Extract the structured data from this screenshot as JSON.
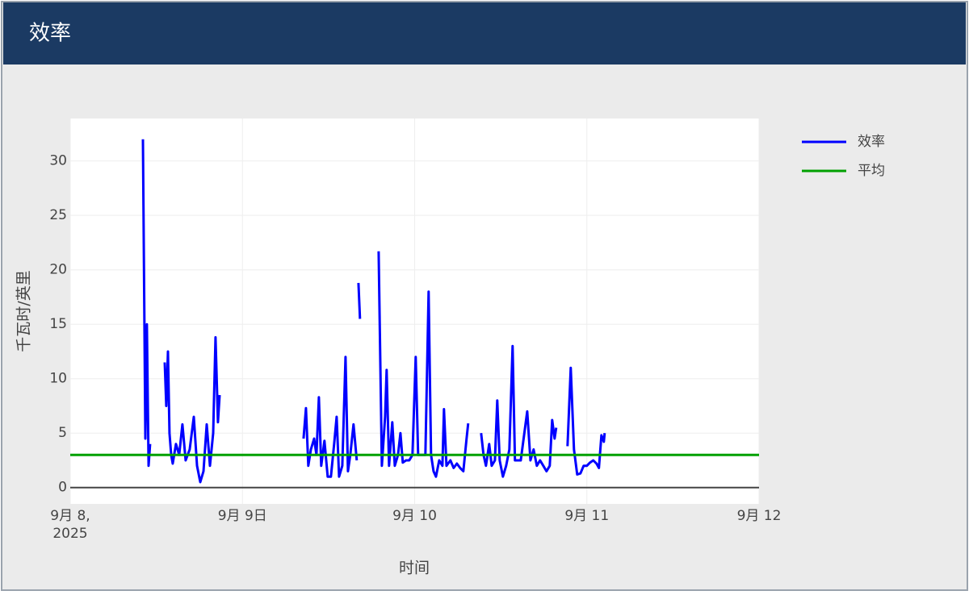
{
  "header": {
    "title": "效率"
  },
  "chart_data": {
    "type": "line",
    "xlabel": "时间",
    "ylabel": "千瓦时/英里",
    "xlim": [
      "2025-09-08T00:00",
      "2025-09-12T00:00"
    ],
    "xticks": [
      {
        "value": "2025-09-08T00:00",
        "label": "9月 8,\n2025"
      },
      {
        "value": "2025-09-09T00:00",
        "label": "9月 9日"
      },
      {
        "value": "2025-09-10T00:00",
        "label": "9月 10"
      },
      {
        "value": "2025-09-11T00:00",
        "label": "9月 11"
      },
      {
        "value": "2025-09-12T00:00",
        "label": "9月 12"
      }
    ],
    "ylim": [
      -1.5,
      33.9
    ],
    "yticks": [
      0,
      5,
      10,
      15,
      20,
      25,
      30
    ],
    "grid": true,
    "legend": "right",
    "series": [
      {
        "name": "效率",
        "color": "#0000ff",
        "x": [
          "2025-09-08T10:08",
          "2025-09-08T10:28",
          "2025-09-08T10:41",
          "2025-09-08T10:55",
          "2025-09-08T11:08",
          null,
          "2025-09-08T13:10",
          "2025-09-08T13:23",
          "2025-09-08T13:37",
          "2025-09-08T13:50",
          "2025-09-08T14:04",
          "2025-09-08T14:17",
          "2025-09-08T14:44",
          "2025-09-08T15:11",
          "2025-09-08T15:38",
          "2025-09-08T16:05",
          "2025-09-08T16:39",
          "2025-09-08T17:13",
          "2025-09-08T17:40",
          "2025-09-08T18:07",
          "2025-09-08T18:34",
          "2025-09-08T19:01",
          "2025-09-08T19:28",
          "2025-09-08T19:55",
          "2025-09-08T20:15",
          "2025-09-08T20:35",
          "2025-09-08T20:49",
          null,
          "2025-09-09T08:31",
          "2025-09-09T08:51",
          "2025-09-09T09:11",
          "2025-09-09T09:32",
          "2025-09-09T09:59",
          "2025-09-09T10:19",
          "2025-09-09T10:39",
          "2025-09-09T10:59",
          "2025-09-09T11:26",
          "2025-09-09T11:53",
          "2025-09-09T12:20",
          "2025-09-09T12:47",
          "2025-09-09T13:08",
          "2025-09-09T13:28",
          "2025-09-09T13:55",
          "2025-09-09T14:22",
          "2025-09-09T14:42",
          "2025-09-09T15:02",
          "2025-09-09T15:29",
          "2025-09-09T15:56",
          null,
          "2025-09-09T16:10",
          "2025-09-09T16:23",
          null,
          "2025-09-09T18:59",
          "2025-09-09T19:26",
          "2025-09-09T19:53",
          "2025-09-09T20:06",
          "2025-09-09T20:26",
          "2025-09-09T20:53",
          "2025-09-09T21:14",
          "2025-09-09T21:41",
          "2025-09-09T22:01",
          "2025-09-09T22:21",
          "2025-09-09T22:48",
          "2025-09-09T23:15",
          "2025-09-09T23:42",
          "2025-09-10T00:09",
          "2025-09-10T00:29",
          "2025-09-10T01:30",
          "2025-09-10T01:57",
          "2025-09-10T02:17",
          "2025-09-10T02:38",
          "2025-09-10T02:58",
          "2025-09-10T03:25",
          "2025-09-10T03:52",
          "2025-09-10T04:05",
          "2025-09-10T04:26",
          "2025-09-10T04:59",
          "2025-09-10T05:26",
          "2025-09-10T05:53",
          "2025-09-10T06:20",
          "2025-09-10T06:47",
          "2025-09-10T07:14",
          "2025-09-10T07:28",
          null,
          "2025-09-10T09:16",
          "2025-09-10T09:36",
          "2025-09-10T09:56",
          "2025-09-10T10:23",
          "2025-09-10T10:44",
          "2025-09-10T11:11",
          "2025-09-10T11:31",
          "2025-09-10T11:51",
          "2025-09-10T12:18",
          "2025-09-10T12:45",
          "2025-09-10T13:12",
          "2025-09-10T13:39",
          "2025-09-10T13:59",
          "2025-09-10T14:47",
          "2025-09-10T15:41",
          "2025-09-10T16:08",
          "2025-09-10T16:35",
          "2025-09-10T17:02",
          "2025-09-10T17:29",
          "2025-09-10T17:56",
          "2025-09-10T18:23",
          "2025-09-10T18:50",
          "2025-09-10T19:10",
          "2025-09-10T19:30",
          "2025-09-10T19:44",
          null,
          "2025-09-10T21:18",
          "2025-09-10T21:45",
          "2025-09-10T22:12",
          "2025-09-10T22:39",
          "2025-09-10T23:06",
          "2025-09-10T23:33",
          "2025-09-11T00:00",
          "2025-09-11T00:27",
          "2025-09-11T00:54",
          "2025-09-11T01:21",
          "2025-09-11T01:41",
          "2025-09-11T02:02",
          "2025-09-11T02:22",
          "2025-09-11T02:29"
        ],
        "values": [
          32,
          4.5,
          15,
          2,
          4,
          null,
          11.5,
          7.5,
          12.5,
          5,
          3,
          2.2,
          4,
          3,
          5.8,
          2.5,
          3.5,
          6.5,
          2,
          0.5,
          1.5,
          5.8,
          2,
          5,
          13.8,
          6,
          8.5,
          null,
          4.5,
          7.3,
          2,
          3.5,
          4.5,
          3,
          8.3,
          2,
          4.3,
          1,
          1,
          4,
          6.5,
          1,
          2,
          12,
          1.5,
          3,
          5.8,
          2.5,
          null,
          18.8,
          15.5,
          null,
          21.7,
          2,
          6.5,
          10.8,
          2,
          6,
          2,
          3,
          5,
          2.3,
          2.5,
          2.5,
          3,
          12,
          3,
          3,
          18,
          3,
          1.5,
          1,
          2.5,
          2,
          7.2,
          2,
          2.5,
          1.8,
          2.2,
          1.8,
          1.5,
          4.5,
          5.9,
          null,
          5,
          3,
          2,
          4,
          2,
          2.5,
          8,
          2.5,
          1,
          2,
          3.5,
          13,
          2.5,
          2.5,
          7,
          2.5,
          3.5,
          2,
          2.5,
          2,
          1.5,
          2,
          6.2,
          4.5,
          5.5,
          null,
          3.8,
          11,
          3.5,
          1.2,
          1.3,
          2,
          2,
          2.3,
          2.5,
          2.2,
          1.8,
          4.8,
          4.2,
          5
        ]
      },
      {
        "name": "平均",
        "color": "#00a000",
        "x": [
          "2025-09-08T00:00",
          "2025-09-12T00:00"
        ],
        "values": [
          3,
          3
        ]
      }
    ]
  }
}
